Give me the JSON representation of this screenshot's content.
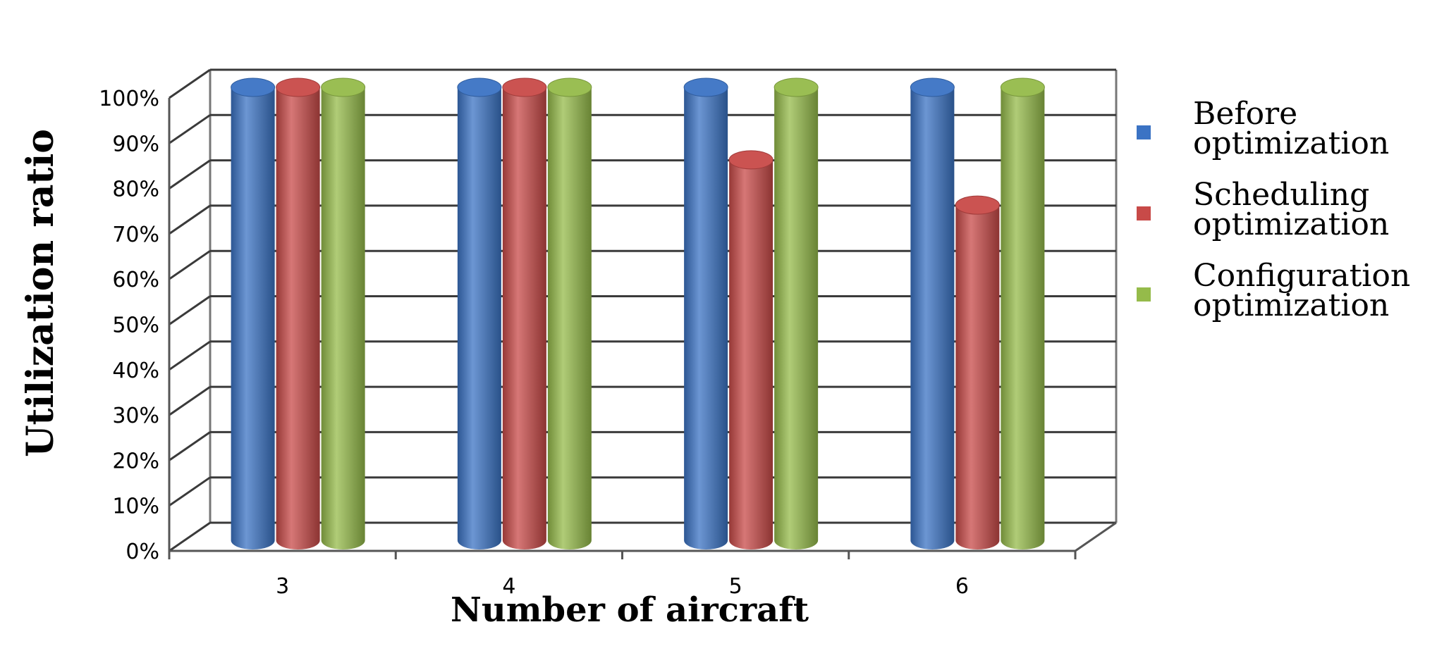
{
  "chart_data": {
    "type": "bar",
    "style": "3d-cylinder",
    "title": "",
    "xlabel": "Number of aircraft",
    "ylabel": "Utilization ratio",
    "categories": [
      "3",
      "4",
      "5",
      "6"
    ],
    "series": [
      {
        "name": "Before optimization",
        "name_lines": [
          "Before",
          "optimization"
        ],
        "color": "#3b73c4",
        "values": [
          100,
          100,
          100,
          100
        ]
      },
      {
        "name": "Scheduling optimization",
        "name_lines": [
          "Scheduling",
          "optimization"
        ],
        "color": "#c84a48",
        "values": [
          100,
          100,
          84,
          74
        ]
      },
      {
        "name": "Configuration optimization",
        "name_lines": [
          "Configuration",
          "optimization"
        ],
        "color": "#95bb4a",
        "values": [
          100,
          100,
          100,
          100
        ]
      }
    ],
    "yticks": [
      "0%",
      "10%",
      "20%",
      "30%",
      "40%",
      "50%",
      "60%",
      "70%",
      "80%",
      "90%",
      "100%"
    ],
    "ylim": [
      0,
      100
    ],
    "grid": true,
    "legend_position": "right"
  }
}
